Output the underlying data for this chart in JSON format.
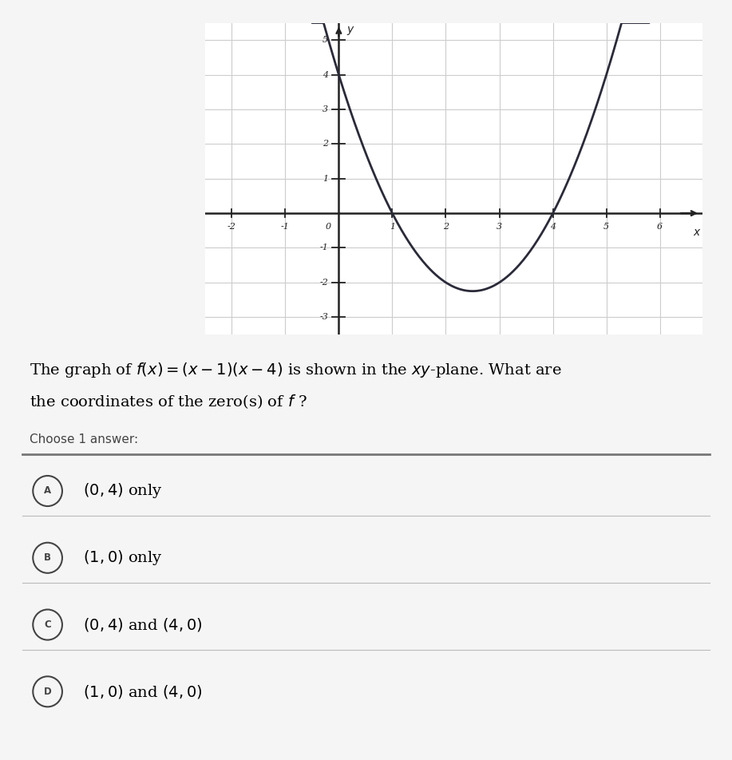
{
  "question_line1": "The graph of $f(x) = (x-1)(x-4)$ is shown in the $xy$-plane. What are",
  "question_line2": "the coordinates of the zero(s) of $f$ ?",
  "choose_text": "Choose 1 answer:",
  "choices": [
    {
      "label": "A",
      "text": "$(0, 4)$ only"
    },
    {
      "label": "B",
      "text": "$(1, 0)$ only"
    },
    {
      "label": "C",
      "text": "$(0, 4)$ and $(4, 0)$"
    },
    {
      "label": "D",
      "text": "$(1, 0)$ and $(4, 0)$"
    }
  ],
  "graph": {
    "xlim": [
      -2.5,
      6.8
    ],
    "ylim": [
      -3.5,
      5.5
    ],
    "xtick_vals": [
      -2,
      -1,
      1,
      2,
      3,
      4,
      5,
      6
    ],
    "ytick_vals": [
      -3,
      -2,
      -1,
      1,
      2,
      3,
      4,
      5
    ],
    "xlabel": "$x$",
    "ylabel": "$y$",
    "curve_color": "#2a2a3a",
    "grid_color": "#cccccc",
    "axis_color": "#222222",
    "bg_color": "#ffffff"
  },
  "page_bg": "#d8d8d8",
  "white_card_bg": "#f5f5f5"
}
